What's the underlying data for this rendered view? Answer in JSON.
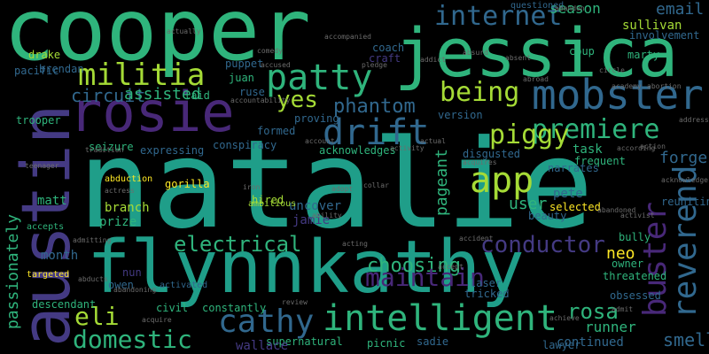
{
  "palette": {
    "background": "#000000",
    "green": "#2fb47c",
    "teal": "#1f9e89",
    "blue": "#31688e",
    "purple": "#443a83",
    "violet": "#482878",
    "lime": "#a5db36",
    "yellow": "#fde725",
    "grey": "#6c6c6c"
  },
  "words": [
    {
      "text": "cooper",
      "color": "#2fb47c"
    },
    {
      "text": "jessica",
      "color": "#2fb47c"
    },
    {
      "text": "natalie",
      "color": "#1f9e89"
    },
    {
      "text": "flynnkathy",
      "color": "#1f9e89"
    },
    {
      "text": "austin",
      "color": "#443a83"
    },
    {
      "text": "rosie",
      "color": "#482878"
    },
    {
      "text": "mobster",
      "color": "#31688e"
    },
    {
      "text": "militia",
      "color": "#a5db36"
    },
    {
      "text": "patty",
      "color": "#2fb47c"
    },
    {
      "text": "internet",
      "color": "#31688e"
    },
    {
      "text": "email",
      "color": "#31688e"
    },
    {
      "text": "being",
      "color": "#a5db36"
    },
    {
      "text": "premiere",
      "color": "#2fb47c"
    },
    {
      "text": "drift",
      "color": "#31688e"
    },
    {
      "text": "piggy",
      "color": "#a5db36"
    },
    {
      "text": "app",
      "color": "#a5db36"
    },
    {
      "text": "buster",
      "color": "#482878"
    },
    {
      "text": "reverend",
      "color": "#31688e"
    },
    {
      "text": "intelligent",
      "color": "#2fb47c"
    },
    {
      "text": "cathy",
      "color": "#31688e"
    },
    {
      "text": "domestic",
      "color": "#2fb47c"
    },
    {
      "text": "eli",
      "color": "#a5db36"
    },
    {
      "text": "electrical",
      "color": "#2fb47c"
    },
    {
      "text": "conductor",
      "color": "#443a83"
    },
    {
      "text": "choosing",
      "color": "#2fb47c"
    },
    {
      "text": "rosa",
      "color": "#2fb47c"
    },
    {
      "text": "smell",
      "color": "#31688e"
    },
    {
      "text": "maintain",
      "color": "#482878"
    },
    {
      "text": "yes",
      "color": "#a5db36"
    },
    {
      "text": "phantom",
      "color": "#31688e"
    },
    {
      "text": "circuit",
      "color": "#31688e"
    },
    {
      "text": "assisted",
      "color": "#2fb47c"
    },
    {
      "text": "passionately",
      "color": "#2fb47c"
    },
    {
      "text": "season",
      "color": "#2fb47c"
    },
    {
      "text": "sullivan",
      "color": "#a5db36"
    },
    {
      "text": "forge",
      "color": "#31688e"
    },
    {
      "text": "neo",
      "color": "#fde725"
    },
    {
      "text": "user",
      "color": "#2fb47c"
    },
    {
      "text": "pageant",
      "color": "#2fb47c"
    },
    {
      "text": "runner",
      "color": "#2fb47c"
    },
    {
      "text": "continued",
      "color": "#31688e"
    },
    {
      "text": "supernatural",
      "color": "#2fb47c"
    },
    {
      "text": "wallace",
      "color": "#443a83"
    },
    {
      "text": "matt",
      "color": "#2fb47c"
    },
    {
      "text": "month",
      "color": "#31688e"
    },
    {
      "text": "uncover",
      "color": "#31688e"
    },
    {
      "text": "jamie",
      "color": "#443a83"
    },
    {
      "text": "branch",
      "color": "#a5db36"
    },
    {
      "text": "prize",
      "color": "#2fb47c"
    },
    {
      "text": "pete",
      "color": "#31688e"
    },
    {
      "text": "task",
      "color": "#2fb47c"
    },
    {
      "text": "hired",
      "color": "#a5db36"
    },
    {
      "text": "constantly",
      "color": "#2fb47c"
    },
    {
      "text": "descendant",
      "color": "#2fb47c"
    },
    {
      "text": "lawyer",
      "color": "#31688e"
    },
    {
      "text": "threatened",
      "color": "#2fb47c"
    },
    {
      "text": "obsessed",
      "color": "#31688e"
    },
    {
      "text": "sadie",
      "color": "#31688e"
    },
    {
      "text": "picnic",
      "color": "#2fb47c"
    },
    {
      "text": "conspiracy",
      "color": "#31688e"
    },
    {
      "text": "formed",
      "color": "#31688e"
    },
    {
      "text": "expressing",
      "color": "#31688e"
    },
    {
      "text": "seizure",
      "color": "#2fb47c"
    },
    {
      "text": "trooper",
      "color": "#2fb47c"
    },
    {
      "text": "pacific",
      "color": "#31688e"
    },
    {
      "text": "drake",
      "color": "#a5db36"
    },
    {
      "text": "brendan",
      "color": "#31688e"
    },
    {
      "text": "ruse",
      "color": "#31688e"
    },
    {
      "text": "laid",
      "color": "#2fb47c"
    },
    {
      "text": "proving",
      "color": "#31688e"
    },
    {
      "text": "version",
      "color": "#31688e"
    },
    {
      "text": "coup",
      "color": "#2fb47c"
    },
    {
      "text": "marty",
      "color": "#2fb47c"
    },
    {
      "text": "selected",
      "color": "#fde725"
    },
    {
      "text": "bully",
      "color": "#2fb47c"
    },
    {
      "text": "owner",
      "color": "#2fb47c"
    },
    {
      "text": "laser",
      "color": "#31688e"
    },
    {
      "text": "tricked",
      "color": "#31688e"
    },
    {
      "text": "civil",
      "color": "#2fb47c"
    },
    {
      "text": "nun",
      "color": "#443a83"
    },
    {
      "text": "owen",
      "color": "#31688e"
    },
    {
      "text": "beauty",
      "color": "#31688e"
    },
    {
      "text": "frequent",
      "color": "#2fb47c"
    },
    {
      "text": "narrates",
      "color": "#31688e"
    },
    {
      "text": "acknowledges",
      "color": "#2fb47c"
    },
    {
      "text": "disgusted",
      "color": "#31688e"
    },
    {
      "text": "gorilla",
      "color": "#fde725"
    },
    {
      "text": "reuniting",
      "color": "#31688e"
    },
    {
      "text": "involvement",
      "color": "#31688e"
    },
    {
      "text": "juan",
      "color": "#2fb47c"
    },
    {
      "text": "puppet",
      "color": "#31688e"
    },
    {
      "text": "coach",
      "color": "#31688e"
    },
    {
      "text": "craft",
      "color": "#443a83"
    },
    {
      "text": "questioned",
      "color": "#31688e"
    },
    {
      "text": "ambitious",
      "color": "#a5db36"
    },
    {
      "text": "activated",
      "color": "#31688e"
    },
    {
      "text": "accepts",
      "color": "#2fb47c"
    },
    {
      "text": "targeted",
      "color": "#fde725"
    },
    {
      "text": "abduction",
      "color": "#fde725"
    },
    {
      "text": "comedy",
      "color": "#6c6c6c"
    },
    {
      "text": "accused",
      "color": "#6c6c6c"
    },
    {
      "text": "accountability",
      "color": "#6c6c6c"
    },
    {
      "text": "accompanied",
      "color": "#6c6c6c"
    },
    {
      "text": "pledge",
      "color": "#6c6c6c"
    },
    {
      "text": "abandon",
      "color": "#6c6c6c"
    },
    {
      "text": "abortion",
      "color": "#6c6c6c"
    },
    {
      "text": "academy",
      "color": "#6c6c6c"
    },
    {
      "text": "circle",
      "color": "#6c6c6c"
    },
    {
      "text": "address",
      "color": "#6c6c6c"
    },
    {
      "text": "actually",
      "color": "#6c6c6c"
    },
    {
      "text": "tradition",
      "color": "#6c6c6c"
    },
    {
      "text": "teenager",
      "color": "#6c6c6c"
    },
    {
      "text": "actress",
      "color": "#6c6c6c"
    },
    {
      "text": "abandoning",
      "color": "#6c6c6c"
    },
    {
      "text": "acquire",
      "color": "#6c6c6c"
    },
    {
      "text": "review",
      "color": "#6c6c6c"
    },
    {
      "text": "acquires",
      "color": "#6c6c6c"
    },
    {
      "text": "activity",
      "color": "#6c6c6c"
    },
    {
      "text": "actual",
      "color": "#6c6c6c"
    },
    {
      "text": "ability",
      "color": "#6c6c6c"
    },
    {
      "text": "adopt",
      "color": "#6c6c6c"
    },
    {
      "text": "collar",
      "color": "#6c6c6c"
    },
    {
      "text": "iron",
      "color": "#6c6c6c"
    },
    {
      "text": "account",
      "color": "#6c6c6c"
    },
    {
      "text": "according",
      "color": "#6c6c6c"
    },
    {
      "text": "action",
      "color": "#6c6c6c"
    },
    {
      "text": "acknowledge",
      "color": "#6c6c6c"
    },
    {
      "text": "abandoned",
      "color": "#6c6c6c"
    },
    {
      "text": "activist",
      "color": "#6c6c6c"
    },
    {
      "text": "accident",
      "color": "#6c6c6c"
    },
    {
      "text": "acting",
      "color": "#6c6c6c"
    },
    {
      "text": "abducts",
      "color": "#6c6c6c"
    },
    {
      "text": "admitting",
      "color": "#6c6c6c"
    },
    {
      "text": "achieve",
      "color": "#6c6c6c"
    },
    {
      "text": "addict",
      "color": "#6c6c6c"
    },
    {
      "text": "absurd",
      "color": "#6c6c6c"
    },
    {
      "text": "accept",
      "color": "#6c6c6c"
    },
    {
      "text": "admit",
      "color": "#6c6c6c"
    },
    {
      "text": "abroad",
      "color": "#6c6c6c"
    },
    {
      "text": "absent",
      "color": "#6c6c6c"
    }
  ]
}
